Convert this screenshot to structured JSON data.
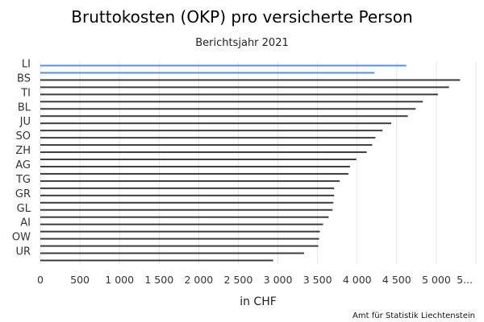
{
  "chart_data": {
    "type": "bar",
    "orientation": "horizontal",
    "title": "Bruttokosten (OKP) pro versicherte Person",
    "subtitle": "Berichtsjahr 2021",
    "xlabel": "in CHF",
    "credit": "Amt für Statistik Liechtenstein",
    "xlim": [
      0,
      5500
    ],
    "x_ticks": [
      0,
      500,
      1000,
      1500,
      2000,
      2500,
      3000,
      3500,
      4000,
      4500,
      5000
    ],
    "x_tick_labels": [
      "0",
      "500",
      "1 000",
      "1 500",
      "2 000",
      "2 500",
      "3 000",
      "3 500",
      "4 000",
      "4 500",
      "5 000"
    ],
    "x_tick_overflow_label": "5...",
    "grid": true,
    "categories": [
      "LI",
      "",
      "BS",
      "",
      "TI",
      "",
      "BL",
      "",
      "JU",
      "",
      "SO",
      "",
      "ZH",
      "",
      "AG",
      "",
      "TG",
      "",
      "GR",
      "",
      "GL",
      "",
      "AI",
      "",
      "OW",
      "",
      "UR",
      ""
    ],
    "values": [
      4620,
      4220,
      5300,
      5160,
      5020,
      4830,
      4740,
      4640,
      4430,
      4320,
      4230,
      4190,
      4120,
      3990,
      3910,
      3890,
      3780,
      3710,
      3710,
      3700,
      3690,
      3640,
      3570,
      3530,
      3520,
      3510,
      3330,
      2940
    ],
    "highlight_color": "#5b8fe0",
    "bar_color": "#3c3c3c",
    "highlight_indices": [
      0,
      1
    ]
  }
}
